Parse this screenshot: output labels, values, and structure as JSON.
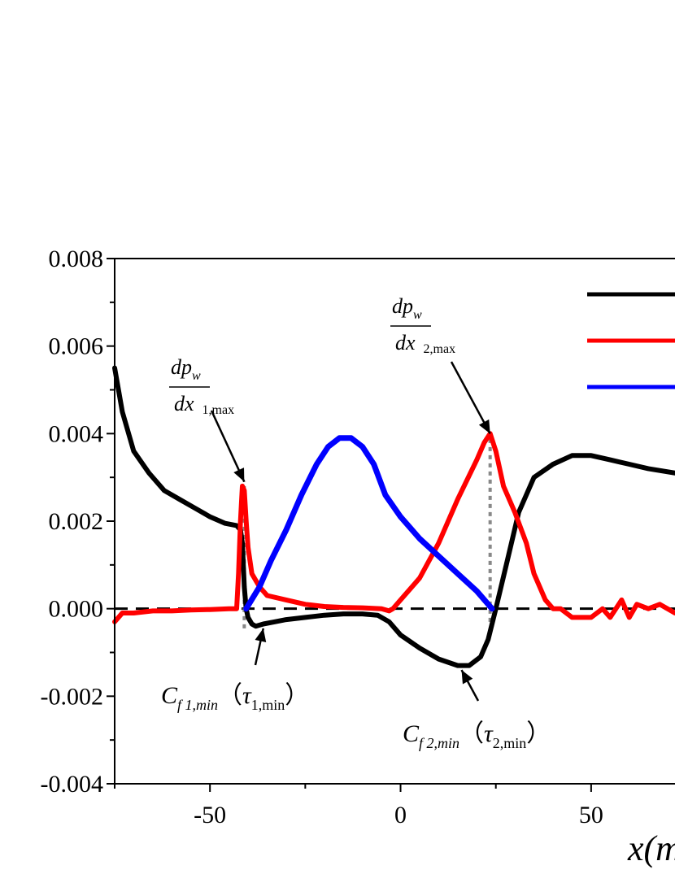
{
  "chart_data": {
    "type": "line",
    "xlabel": "x(m",
    "xlim": [
      -75,
      72
    ],
    "ylim": [
      -0.004,
      0.008
    ],
    "x_ticks": [
      -50,
      0,
      50
    ],
    "y_ticks": [
      -0.004,
      -0.002,
      0.0,
      0.002,
      0.004,
      0.006,
      0.008
    ],
    "x_tick_labels": [
      "-50",
      "0",
      "50"
    ],
    "y_tick_labels": [
      "-0.004",
      "-0.002",
      "0.000",
      "0.002",
      "0.004",
      "0.006",
      "0.008"
    ],
    "grid": false,
    "legend_position": "top-right",
    "series": [
      {
        "color": "#000000",
        "points": [
          [
            -75,
            0.0055
          ],
          [
            -73,
            0.0045
          ],
          [
            -70,
            0.0036
          ],
          [
            -66,
            0.0031
          ],
          [
            -62,
            0.0027
          ],
          [
            -58,
            0.0025
          ],
          [
            -54,
            0.0023
          ],
          [
            -50,
            0.0021
          ],
          [
            -46,
            0.00195
          ],
          [
            -43,
            0.0019
          ],
          [
            -42,
            0.0018
          ],
          [
            -41.5,
            0.0015
          ],
          [
            -41,
            0.0005
          ],
          [
            -40.5,
            0.0
          ],
          [
            -40,
            -0.0002
          ],
          [
            -39,
            -0.00035
          ],
          [
            -38,
            -0.0004
          ],
          [
            -36,
            -0.00035
          ],
          [
            -33,
            -0.0003
          ],
          [
            -30,
            -0.00025
          ],
          [
            -25,
            -0.0002
          ],
          [
            -20,
            -0.00015
          ],
          [
            -15,
            -0.00012
          ],
          [
            -10,
            -0.00012
          ],
          [
            -6,
            -0.00015
          ],
          [
            -3,
            -0.0003
          ],
          [
            0,
            -0.0006
          ],
          [
            5,
            -0.0009
          ],
          [
            10,
            -0.00115
          ],
          [
            15,
            -0.0013
          ],
          [
            18,
            -0.0013
          ],
          [
            21,
            -0.0011
          ],
          [
            23,
            -0.0007
          ],
          [
            25,
            0.0
          ],
          [
            28,
            0.0011
          ],
          [
            31,
            0.0022
          ],
          [
            35,
            0.003
          ],
          [
            40,
            0.0033
          ],
          [
            45,
            0.0035
          ],
          [
            50,
            0.0035
          ],
          [
            55,
            0.0034
          ],
          [
            60,
            0.0033
          ],
          [
            65,
            0.0032
          ],
          [
            72,
            0.0031
          ]
        ]
      },
      {
        "color": "#ff0000",
        "points": [
          [
            -75,
            -0.0003
          ],
          [
            -73,
            -0.0001
          ],
          [
            -70,
            -0.0001
          ],
          [
            -65,
            -5e-05
          ],
          [
            -60,
            -5e-05
          ],
          [
            -55,
            -3e-05
          ],
          [
            -50,
            -2e-05
          ],
          [
            -45,
            0.0
          ],
          [
            -43,
            0.0
          ],
          [
            -42.5,
            0.0008
          ],
          [
            -42,
            0.002
          ],
          [
            -41.5,
            0.0028
          ],
          [
            -41,
            0.0027
          ],
          [
            -40.5,
            0.002
          ],
          [
            -40,
            0.0014
          ],
          [
            -39,
            0.0008
          ],
          [
            -37,
            0.0005
          ],
          [
            -35,
            0.0003
          ],
          [
            -30,
            0.0002
          ],
          [
            -25,
            0.0001
          ],
          [
            -20,
            5e-05
          ],
          [
            -15,
            3e-05
          ],
          [
            -10,
            2e-05
          ],
          [
            -5,
            0.0
          ],
          [
            -3,
            -5e-05
          ],
          [
            -2,
            0.0
          ],
          [
            0,
            0.0002
          ],
          [
            5,
            0.0007
          ],
          [
            10,
            0.0015
          ],
          [
            15,
            0.0025
          ],
          [
            20,
            0.0034
          ],
          [
            22,
            0.0038
          ],
          [
            23.5,
            0.004
          ],
          [
            25,
            0.0036
          ],
          [
            27,
            0.0028
          ],
          [
            30,
            0.0022
          ],
          [
            33,
            0.0015
          ],
          [
            35,
            0.0008
          ],
          [
            38,
            0.0002
          ],
          [
            40,
            0.0
          ],
          [
            42,
            0.0
          ],
          [
            45,
            -0.0002
          ],
          [
            50,
            -0.0002
          ],
          [
            53,
            0.0
          ],
          [
            55,
            -0.0002
          ],
          [
            58,
            0.0002
          ],
          [
            60,
            -0.0002
          ],
          [
            62,
            0.0001
          ],
          [
            65,
            0.0
          ],
          [
            68,
            0.0001
          ],
          [
            72,
            -0.0001
          ]
        ]
      },
      {
        "color": "#0000ff",
        "points": [
          [
            -40.5,
            0.0
          ],
          [
            -37,
            0.0005
          ],
          [
            -34,
            0.0011
          ],
          [
            -30,
            0.0018
          ],
          [
            -26,
            0.0026
          ],
          [
            -22,
            0.0033
          ],
          [
            -19,
            0.0037
          ],
          [
            -16,
            0.0039
          ],
          [
            -13,
            0.0039
          ],
          [
            -10,
            0.0037
          ],
          [
            -7,
            0.0033
          ],
          [
            -4,
            0.0026
          ],
          [
            0,
            0.0021
          ],
          [
            5,
            0.0016
          ],
          [
            10,
            0.0012
          ],
          [
            15,
            0.0008
          ],
          [
            20,
            0.0004
          ],
          [
            24,
            0.0
          ]
        ]
      }
    ],
    "reference_lines": [
      {
        "type": "horizontal",
        "y": 0.0,
        "style": "dashed",
        "color": "#000000"
      },
      {
        "type": "vertical",
        "x": -41,
        "y_range": [
          -0.00045,
          0.0029
        ],
        "style": "dotted",
        "color": "#888888"
      },
      {
        "type": "vertical",
        "x": 23.5,
        "y_range": [
          -0.0003,
          0.004
        ],
        "style": "dotted",
        "color": "#888888"
      }
    ],
    "annotations": [
      {
        "id": "dpdx1",
        "kind": "fraction",
        "num_main": "dp",
        "num_sub": "w",
        "den_main": "dx",
        "den_sub": "1,max",
        "points_to": [
          -41,
          0.0029
        ]
      },
      {
        "id": "dpdx2",
        "kind": "fraction",
        "num_main": "dp",
        "num_sub": "w",
        "den_main": "dx",
        "den_sub": "2,max",
        "points_to": [
          23.5,
          0.004
        ]
      },
      {
        "id": "cf1",
        "kind": "label",
        "c_main": "C",
        "c_sub": "f 1,min",
        "open": "（",
        "tau_main": "τ",
        "tau_sub": "1,min",
        "close": "）",
        "points_to": [
          -36,
          -0.00045
        ]
      },
      {
        "id": "cf2",
        "kind": "label",
        "c_main": "C",
        "c_sub": "f 2,min",
        "open": "（",
        "tau_main": "τ",
        "tau_sub": "2,min",
        "close": "）",
        "points_to": [
          16,
          -0.0014
        ]
      }
    ]
  }
}
